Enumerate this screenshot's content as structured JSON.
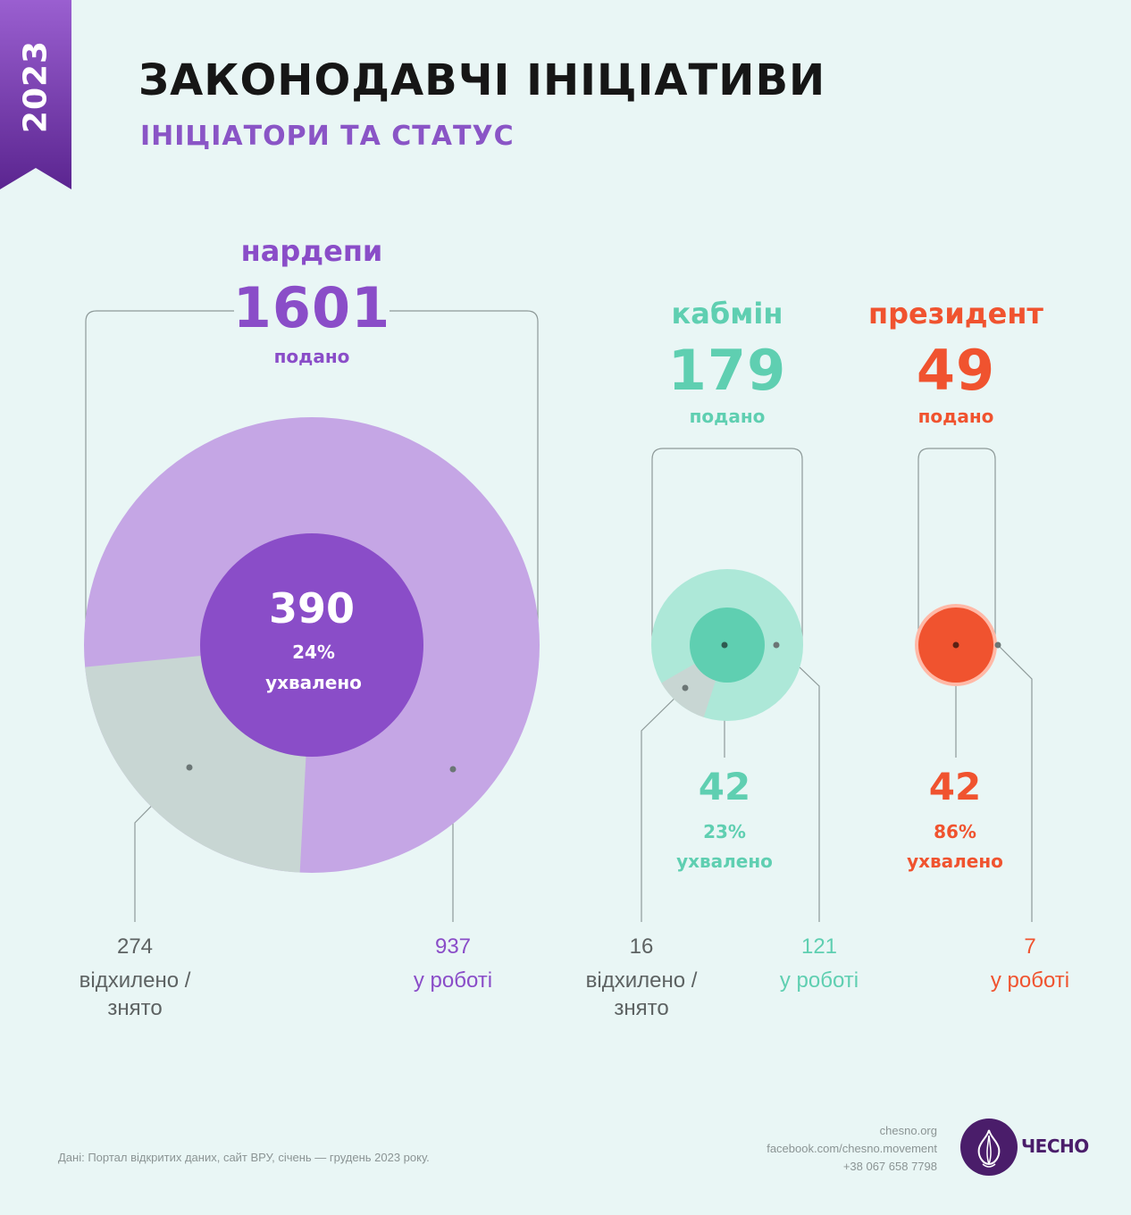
{
  "year": "2023",
  "title": "ЗАКОНОДАВЧІ ІНІЦІАТИВИ",
  "subtitle": "ІНІЦІАТОРИ ТА СТАТУС",
  "colors": {
    "purple": "#8a4dc8",
    "purple_light": "#c5a6e5",
    "purple_dark": "#8a4dc8",
    "teal": "#5fcfb1",
    "teal_light": "#ade8d8",
    "red": "#f0532f",
    "grey_slice": "#c8d6d3",
    "background": "#e9f6f5"
  },
  "groups": {
    "mps": {
      "name": "нардепи",
      "submitted": "1601",
      "submitted_label": "подано",
      "approved": "390",
      "approved_pct": "24%",
      "approved_label": "ухвалено",
      "rejected": "274",
      "rejected_label_1": "відхилено /",
      "rejected_label_2": "знято",
      "in_work": "937",
      "in_work_label": "у роботі"
    },
    "cabmin": {
      "name": "кабмін",
      "submitted": "179",
      "submitted_label": "подано",
      "approved": "42",
      "approved_pct": "23%",
      "approved_label": "ухвалено",
      "rejected": "16",
      "rejected_label_1": "відхилено /",
      "rejected_label_2": "знято",
      "in_work": "121",
      "in_work_label": "у роботі"
    },
    "president": {
      "name": "президент",
      "submitted": "49",
      "submitted_label": "подано",
      "approved": "42",
      "approved_pct": "86%",
      "approved_label": "ухвалено",
      "in_work": "7",
      "in_work_label": "у роботі"
    }
  },
  "chart_data": [
    {
      "type": "pie",
      "title": "нардепи",
      "total_submitted": 1601,
      "slices": [
        {
          "label": "ухвалено",
          "value": 390,
          "percent": 24
        },
        {
          "label": "відхилено / знято",
          "value": 274
        },
        {
          "label": "у роботі",
          "value": 937
        }
      ]
    },
    {
      "type": "pie",
      "title": "кабмін",
      "total_submitted": 179,
      "slices": [
        {
          "label": "ухвалено",
          "value": 42,
          "percent": 23
        },
        {
          "label": "відхилено / знято",
          "value": 16
        },
        {
          "label": "у роботі",
          "value": 121
        }
      ]
    },
    {
      "type": "pie",
      "title": "президент",
      "total_submitted": 49,
      "slices": [
        {
          "label": "ухвалено",
          "value": 42,
          "percent": 86
        },
        {
          "label": "у роботі",
          "value": 7
        }
      ]
    }
  ],
  "footer": {
    "source": "Дані: Портал відкритих даних, сайт ВРУ, січень — грудень 2023 року.",
    "site": "chesno.org",
    "facebook": "facebook.com/chesno.movement",
    "phone": "+38 067 658 7798",
    "logo_text": "ЧЕСНО"
  }
}
